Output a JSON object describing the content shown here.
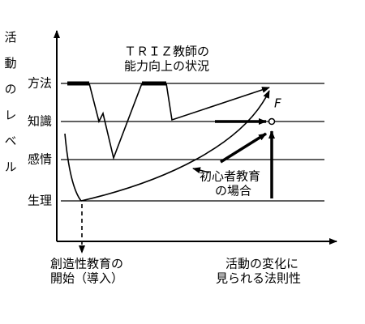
{
  "y_axis_label": "活動のレベル",
  "levels": [
    "方法",
    "知識",
    "感情",
    "生理"
  ],
  "triz_note": [
    "ＴＲＩＺ教師の",
    "能力向上の状況"
  ],
  "novice_note": [
    "初心者教育",
    "の場合"
  ],
  "point_label": "F",
  "x_axis_labels": {
    "start": [
      "創造性教育の",
      "開始（導入）"
    ],
    "trend": [
      "活動の変化に",
      "見られる法則性"
    ]
  }
}
